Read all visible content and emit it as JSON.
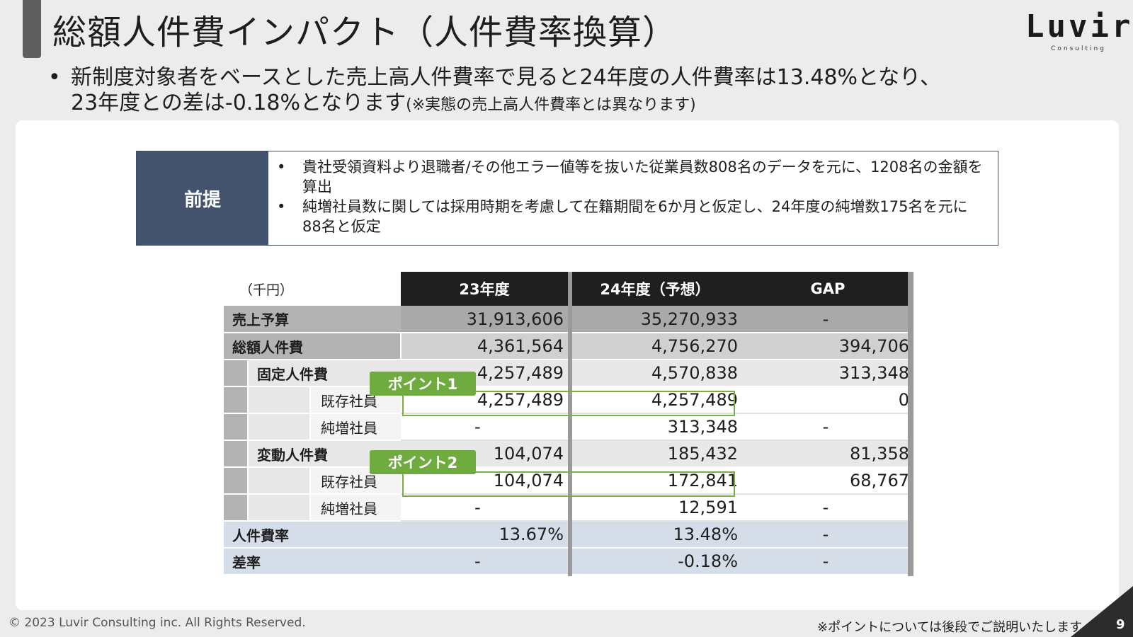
{
  "header": {
    "title": "総額人件費インパクト（人件費率換算）",
    "logo_main": "Luvir",
    "logo_sub": "Consulting"
  },
  "lead": {
    "bullet": "•",
    "line1": "新制度対象者をベースとした売上高人件費率で見ると24年度の人件費率は13.48%となり、",
    "line2": "23年度との差は-0.18%となります",
    "note": "(※実態の売上高人件費率とは異なります)"
  },
  "premise": {
    "label": "前提",
    "items": [
      "貴社受領資料より退職者/その他エラー値等を抜いた従業員数808名のデータを元に、1208名の金額を算出",
      "純増社員数に関しては採用時期を考慮して在籍期間を6か月と仮定し、24年度の純増数175名を元に88名と仮定"
    ]
  },
  "table": {
    "unit": "（千円）",
    "headers": [
      "23年度",
      "24年度（予想）",
      "GAP"
    ],
    "rows": [
      {
        "label": "売上予算",
        "v23": "31,913,606",
        "v24": "35,270,933",
        "gap": "-"
      },
      {
        "label": "総額人件費",
        "v23": "4,361,564",
        "v24": "4,756,270",
        "gap": "394,706"
      },
      {
        "label": "固定人件費",
        "v23": "4,257,489",
        "v24": "4,570,838",
        "gap": "313,348"
      },
      {
        "label": "既存社員",
        "v23": "4,257,489",
        "v24": "4,257,489",
        "gap": "0"
      },
      {
        "label": "純増社員",
        "v23": "-",
        "v24": "313,348",
        "gap": "-"
      },
      {
        "label": "変動人件費",
        "v23": "104,074",
        "v24": "185,432",
        "gap": "81,358"
      },
      {
        "label": "既存社員",
        "v23": "104,074",
        "v24": "172,841",
        "gap": "68,767"
      },
      {
        "label": "純増社員",
        "v23": "-",
        "v24": "12,591",
        "gap": "-"
      },
      {
        "label": "人件費率",
        "v23": "13.67%",
        "v24": "13.48%",
        "gap": "-"
      },
      {
        "label": "差率",
        "v23": "-",
        "v24": "-0.18%",
        "gap": "-"
      }
    ]
  },
  "callouts": {
    "point1": "ポイント1",
    "point2": "ポイント2"
  },
  "footer": {
    "copyright": "© 2023 Luvir Consulting inc. All Rights Reserved.",
    "note": "※ポイントについては後段でご説明いたします",
    "page": "9"
  },
  "colors": {
    "premise_label_bg": "#44536d",
    "header_bg": "#1f1f1f",
    "callout_green": "#6fab3f",
    "rate_row_bg": "#d5dde8"
  }
}
